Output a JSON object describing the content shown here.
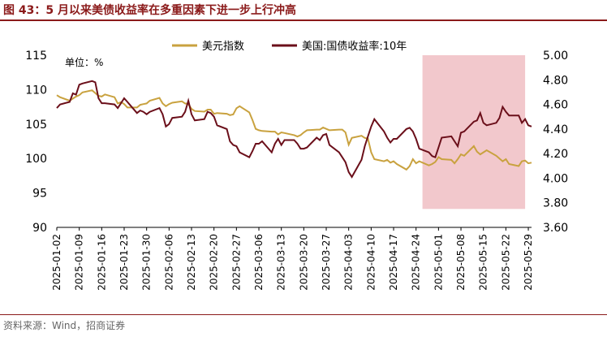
{
  "header": {
    "title": "图 43：5 月以来美债收益率在多重因素下进一步上行冲高"
  },
  "footer": {
    "source": "资料来源：Wind，招商证券"
  },
  "colors": {
    "dxy": "#c9a23f",
    "yield": "#6b0f1a",
    "shade": "#f2c8cc",
    "title": "#8b1a1a"
  },
  "chart_data": {
    "type": "line",
    "unit_label": "单位：%",
    "legend_position": "top",
    "grid": false,
    "x_ticks": [
      "2025-01-02",
      "2025-01-09",
      "2025-01-16",
      "2025-01-23",
      "2025-01-30",
      "2025-02-06",
      "2025-02-13",
      "2025-02-20",
      "2025-02-27",
      "2025-03-06",
      "2025-03-13",
      "2025-03-20",
      "2025-03-27",
      "2025-04-03",
      "2025-04-10",
      "2025-04-17",
      "2025-04-24",
      "2025-05-01",
      "2025-05-08",
      "2025-05-15",
      "2025-05-22",
      "2025-05-29"
    ],
    "y_left": {
      "min": 90,
      "max": 115,
      "ticks": [
        90,
        95,
        100,
        105,
        110,
        115
      ]
    },
    "y_right": {
      "min": 3.6,
      "max": 5.0,
      "ticks": [
        "3.60",
        "3.80",
        "4.00",
        "4.20",
        "4.40",
        "4.60",
        "4.80",
        "5.00"
      ]
    },
    "highlight_range": {
      "start": "2025-04-26",
      "end": "2025-05-28",
      "y_right": [
        3.75,
        5.0
      ]
    },
    "series": [
      {
        "name": "美元指数",
        "axis": "left",
        "x": [
          "2025-01-02",
          "2025-01-03",
          "2025-01-06",
          "2025-01-07",
          "2025-01-08",
          "2025-01-09",
          "2025-01-10",
          "2025-01-13",
          "2025-01-14",
          "2025-01-15",
          "2025-01-16",
          "2025-01-17",
          "2025-01-20",
          "2025-01-21",
          "2025-01-22",
          "2025-01-23",
          "2025-01-24",
          "2025-01-27",
          "2025-01-28",
          "2025-01-29",
          "2025-01-30",
          "2025-01-31",
          "2025-02-03",
          "2025-02-04",
          "2025-02-05",
          "2025-02-06",
          "2025-02-07",
          "2025-02-10",
          "2025-02-11",
          "2025-02-12",
          "2025-02-13",
          "2025-02-14",
          "2025-02-17",
          "2025-02-18",
          "2025-02-19",
          "2025-02-20",
          "2025-02-21",
          "2025-02-24",
          "2025-02-25",
          "2025-02-26",
          "2025-02-27",
          "2025-02-28",
          "2025-03-03",
          "2025-03-04",
          "2025-03-05",
          "2025-03-06",
          "2025-03-07",
          "2025-03-10",
          "2025-03-11",
          "2025-03-12",
          "2025-03-13",
          "2025-03-14",
          "2025-03-17",
          "2025-03-18",
          "2025-03-19",
          "2025-03-20",
          "2025-03-21",
          "2025-03-24",
          "2025-03-25",
          "2025-03-26",
          "2025-03-27",
          "2025-03-28",
          "2025-03-31",
          "2025-04-01",
          "2025-04-02",
          "2025-04-03",
          "2025-04-04",
          "2025-04-07",
          "2025-04-08",
          "2025-04-09",
          "2025-04-10",
          "2025-04-11",
          "2025-04-14",
          "2025-04-15",
          "2025-04-16",
          "2025-04-17",
          "2025-04-18",
          "2025-04-21",
          "2025-04-22",
          "2025-04-23",
          "2025-04-24",
          "2025-04-25",
          "2025-04-28",
          "2025-04-29",
          "2025-04-30",
          "2025-05-01",
          "2025-05-02",
          "2025-05-05",
          "2025-05-06",
          "2025-05-07",
          "2025-05-08",
          "2025-05-09",
          "2025-05-12",
          "2025-05-13",
          "2025-05-14",
          "2025-05-15",
          "2025-05-16",
          "2025-05-19",
          "2025-05-20",
          "2025-05-21",
          "2025-05-22",
          "2025-05-23",
          "2025-05-26",
          "2025-05-27",
          "2025-05-28",
          "2025-05-29",
          "2025-05-30"
        ],
        "values": [
          109.2,
          108.9,
          108.4,
          108.7,
          109.0,
          109.2,
          109.6,
          109.9,
          109.5,
          109.1,
          109.0,
          109.3,
          108.9,
          108.0,
          108.2,
          107.9,
          107.4,
          107.4,
          107.8,
          107.9,
          108.0,
          108.4,
          108.8,
          108.0,
          107.6,
          107.9,
          108.1,
          108.3,
          108.0,
          107.9,
          107.2,
          106.9,
          106.8,
          107.1,
          107.1,
          106.5,
          106.6,
          106.5,
          106.3,
          106.4,
          107.3,
          107.6,
          106.7,
          105.6,
          104.3,
          104.1,
          104.0,
          103.9,
          103.9,
          103.5,
          103.8,
          103.7,
          103.4,
          103.2,
          103.4,
          103.8,
          104.1,
          104.2,
          104.2,
          104.5,
          104.3,
          104.1,
          104.2,
          104.2,
          103.8,
          102.0,
          103.0,
          103.3,
          103.0,
          102.9,
          100.9,
          99.9,
          99.6,
          99.8,
          99.4,
          99.6,
          99.2,
          98.4,
          98.9,
          99.9,
          99.3,
          99.6,
          99.0,
          99.2,
          99.5,
          100.2,
          99.9,
          99.8,
          99.3,
          99.9,
          100.6,
          100.4,
          101.8,
          101.0,
          100.6,
          100.9,
          101.2,
          100.4,
          100.0,
          99.6,
          99.9,
          99.2,
          98.9,
          99.6,
          99.7,
          99.3,
          99.4
        ]
      },
      {
        "name": "美国:国债收益率:10年",
        "axis": "right",
        "x": [
          "2025-01-02",
          "2025-01-03",
          "2025-01-06",
          "2025-01-07",
          "2025-01-08",
          "2025-01-09",
          "2025-01-10",
          "2025-01-13",
          "2025-01-14",
          "2025-01-15",
          "2025-01-16",
          "2025-01-17",
          "2025-01-20",
          "2025-01-21",
          "2025-01-22",
          "2025-01-23",
          "2025-01-24",
          "2025-01-27",
          "2025-01-28",
          "2025-01-29",
          "2025-01-30",
          "2025-01-31",
          "2025-02-03",
          "2025-02-04",
          "2025-02-05",
          "2025-02-06",
          "2025-02-07",
          "2025-02-10",
          "2025-02-11",
          "2025-02-12",
          "2025-02-13",
          "2025-02-14",
          "2025-02-17",
          "2025-02-18",
          "2025-02-19",
          "2025-02-20",
          "2025-02-21",
          "2025-02-24",
          "2025-02-25",
          "2025-02-26",
          "2025-02-27",
          "2025-02-28",
          "2025-03-03",
          "2025-03-04",
          "2025-03-05",
          "2025-03-06",
          "2025-03-07",
          "2025-03-10",
          "2025-03-11",
          "2025-03-12",
          "2025-03-13",
          "2025-03-14",
          "2025-03-17",
          "2025-03-18",
          "2025-03-19",
          "2025-03-20",
          "2025-03-21",
          "2025-03-24",
          "2025-03-25",
          "2025-03-26",
          "2025-03-27",
          "2025-03-28",
          "2025-03-31",
          "2025-04-01",
          "2025-04-02",
          "2025-04-03",
          "2025-04-04",
          "2025-04-07",
          "2025-04-08",
          "2025-04-09",
          "2025-04-10",
          "2025-04-11",
          "2025-04-14",
          "2025-04-15",
          "2025-04-16",
          "2025-04-17",
          "2025-04-18",
          "2025-04-21",
          "2025-04-22",
          "2025-04-23",
          "2025-04-24",
          "2025-04-25",
          "2025-04-28",
          "2025-04-29",
          "2025-04-30",
          "2025-05-01",
          "2025-05-02",
          "2025-05-05",
          "2025-05-06",
          "2025-05-07",
          "2025-05-08",
          "2025-05-09",
          "2025-05-12",
          "2025-05-13",
          "2025-05-14",
          "2025-05-15",
          "2025-05-16",
          "2025-05-19",
          "2025-05-20",
          "2025-05-21",
          "2025-05-22",
          "2025-05-23",
          "2025-05-26",
          "2025-05-27",
          "2025-05-28",
          "2025-05-29",
          "2025-05-30"
        ],
        "values": [
          4.57,
          4.6,
          4.62,
          4.69,
          4.68,
          4.76,
          4.77,
          4.79,
          4.78,
          4.65,
          4.61,
          4.61,
          4.6,
          4.57,
          4.61,
          4.65,
          4.62,
          4.53,
          4.55,
          4.54,
          4.52,
          4.54,
          4.57,
          4.52,
          4.42,
          4.44,
          4.49,
          4.5,
          4.54,
          4.63,
          4.52,
          4.47,
          4.48,
          4.54,
          4.53,
          4.5,
          4.43,
          4.4,
          4.3,
          4.27,
          4.26,
          4.21,
          4.17,
          4.22,
          4.28,
          4.28,
          4.3,
          4.21,
          4.28,
          4.32,
          4.27,
          4.31,
          4.31,
          4.28,
          4.24,
          4.24,
          4.25,
          4.33,
          4.31,
          4.35,
          4.36,
          4.27,
          4.21,
          4.17,
          4.13,
          4.05,
          4.01,
          4.15,
          4.26,
          4.34,
          4.42,
          4.48,
          4.38,
          4.33,
          4.29,
          4.32,
          4.32,
          4.4,
          4.41,
          4.38,
          4.32,
          4.24,
          4.21,
          4.18,
          4.17,
          4.25,
          4.33,
          4.34,
          4.3,
          4.26,
          4.37,
          4.38,
          4.46,
          4.47,
          4.53,
          4.45,
          4.43,
          4.45,
          4.49,
          4.58,
          4.54,
          4.51,
          4.51,
          4.45,
          4.48,
          4.43,
          4.42
        ]
      }
    ]
  }
}
